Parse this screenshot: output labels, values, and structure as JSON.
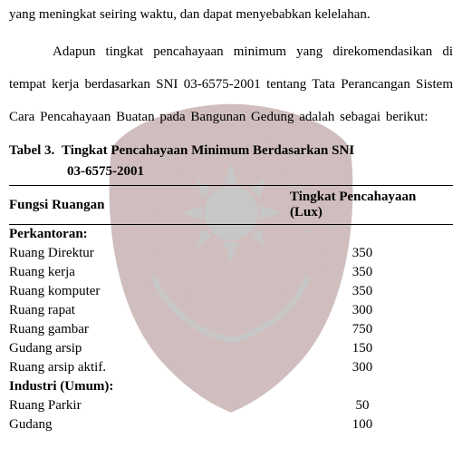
{
  "paragraph1": "yang meningkat seiring waktu, dan dapat menyebabkan kelelahan.",
  "paragraph2": "Adapun tingkat pencahayaan minimum yang direkomendasikan di tempat kerja berdasarkan SNI 03-6575-2001 tentang Tata Perancangan Sistem Cara Pencahayaan Buatan pada Bangunan Gedung adalah sebagai berikut:",
  "table": {
    "caption_label": "Tabel 3.",
    "caption_title": "Tingkat Pencahayaan Minimum Berdasarkan SNI",
    "caption_sub": "03-6575-2001",
    "header_left": "Fungsi Ruangan",
    "header_right": "Tingkat Pencahayaan (Lux)",
    "sections": [
      {
        "title": "Perkantoran:",
        "rows": [
          {
            "name": "Ruang Direktur",
            "value": "350"
          },
          {
            "name": "Ruang kerja",
            "value": "350"
          },
          {
            "name": "Ruang komputer",
            "value": "350"
          },
          {
            "name": "Ruang rapat",
            "value": "300"
          },
          {
            "name": "Ruang gambar",
            "value": "750"
          },
          {
            "name": "Gudang arsip",
            "value": "150"
          },
          {
            "name": "Ruang arsip aktif.",
            "value": "300"
          }
        ]
      },
      {
        "title": "Industri (Umum):",
        "rows": [
          {
            "name": "Ruang Parkir",
            "value": "50"
          },
          {
            "name": "Gudang",
            "value": "100"
          }
        ]
      }
    ]
  },
  "watermark": {
    "shield_fill": "#5a1a1a",
    "shield_opacity": 0.28,
    "sun_fill": "#3a3a3a",
    "text_fill": "#2a2a2a"
  }
}
